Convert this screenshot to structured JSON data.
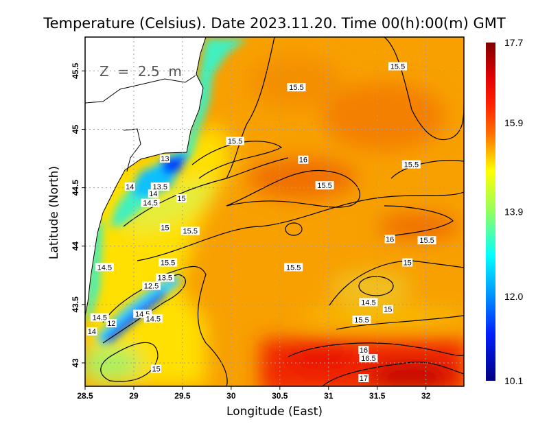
{
  "chart_data": {
    "type": "heatmap",
    "title": "Temperature (Celsius). Date 2023.11.20. Time 00(h):00(m) GMT",
    "xlabel": "Longitude (East)",
    "ylabel": "Latitude (North)",
    "annotation": "Z = 2.5 m",
    "xlim": [
      28.5,
      32.39
    ],
    "ylim": [
      42.8,
      45.79
    ],
    "xticks": [
      "28.5",
      "29",
      "29.5",
      "30",
      "30.5",
      "31",
      "31.5",
      "32"
    ],
    "xtick_values": [
      28.5,
      29,
      29.5,
      30,
      30.5,
      31,
      31.5,
      32
    ],
    "yticks": [
      "43",
      "43.5",
      "44",
      "44.5",
      "45",
      "45.5"
    ],
    "ytick_values": [
      43,
      43.5,
      44,
      44.5,
      45,
      45.5
    ],
    "grid": true,
    "colorbar": {
      "min": 10.1,
      "max": 17.7,
      "tick_labels": [
        "17.7",
        "15.9",
        "13.9",
        "12.0",
        "10.1"
      ],
      "tick_values": [
        17.7,
        15.9,
        13.9,
        12.0,
        10.1
      ],
      "colormap": "jet",
      "placement": "right"
    },
    "contour_labels": [
      {
        "text": "15.5",
        "lon": 31.71,
        "lat": 45.54
      },
      {
        "text": "15.5",
        "lon": 30.67,
        "lat": 45.36
      },
      {
        "text": "15.5",
        "lon": 30.04,
        "lat": 44.9
      },
      {
        "text": "16",
        "lon": 30.74,
        "lat": 44.74
      },
      {
        "text": "15.5",
        "lon": 31.85,
        "lat": 44.7
      },
      {
        "text": "15.5",
        "lon": 30.96,
        "lat": 44.52
      },
      {
        "text": "13",
        "lon": 29.32,
        "lat": 44.75
      },
      {
        "text": "14",
        "lon": 28.96,
        "lat": 44.51
      },
      {
        "text": "13.5",
        "lon": 29.27,
        "lat": 44.51
      },
      {
        "text": "14",
        "lon": 29.2,
        "lat": 44.45
      },
      {
        "text": "14.5",
        "lon": 29.17,
        "lat": 44.37
      },
      {
        "text": "15",
        "lon": 29.49,
        "lat": 44.41
      },
      {
        "text": "15",
        "lon": 29.32,
        "lat": 44.16
      },
      {
        "text": "15.5",
        "lon": 29.58,
        "lat": 44.13
      },
      {
        "text": "16",
        "lon": 31.63,
        "lat": 44.06
      },
      {
        "text": "15.5",
        "lon": 32.01,
        "lat": 44.05
      },
      {
        "text": "14.5",
        "lon": 28.7,
        "lat": 43.82
      },
      {
        "text": "15.5",
        "lon": 29.35,
        "lat": 43.86
      },
      {
        "text": "15.5",
        "lon": 30.64,
        "lat": 43.82
      },
      {
        "text": "15",
        "lon": 31.81,
        "lat": 43.86
      },
      {
        "text": "13.5",
        "lon": 29.32,
        "lat": 43.73
      },
      {
        "text": "12.5",
        "lon": 29.18,
        "lat": 43.66
      },
      {
        "text": "14.5",
        "lon": 31.41,
        "lat": 43.52
      },
      {
        "text": "15",
        "lon": 31.61,
        "lat": 43.46
      },
      {
        "text": "14.5",
        "lon": 28.65,
        "lat": 43.39
      },
      {
        "text": "12",
        "lon": 28.77,
        "lat": 43.34
      },
      {
        "text": "14.5",
        "lon": 29.09,
        "lat": 43.42
      },
      {
        "text": "14.5",
        "lon": 29.2,
        "lat": 43.38
      },
      {
        "text": "15.5",
        "lon": 31.34,
        "lat": 43.37
      },
      {
        "text": "14",
        "lon": 28.57,
        "lat": 43.27
      },
      {
        "text": "15",
        "lon": 29.23,
        "lat": 42.95
      },
      {
        "text": "16",
        "lon": 31.36,
        "lat": 43.11
      },
      {
        "text": "16.5",
        "lon": 31.41,
        "lat": 43.04
      },
      {
        "text": "17",
        "lon": 31.36,
        "lat": 42.87
      }
    ]
  }
}
